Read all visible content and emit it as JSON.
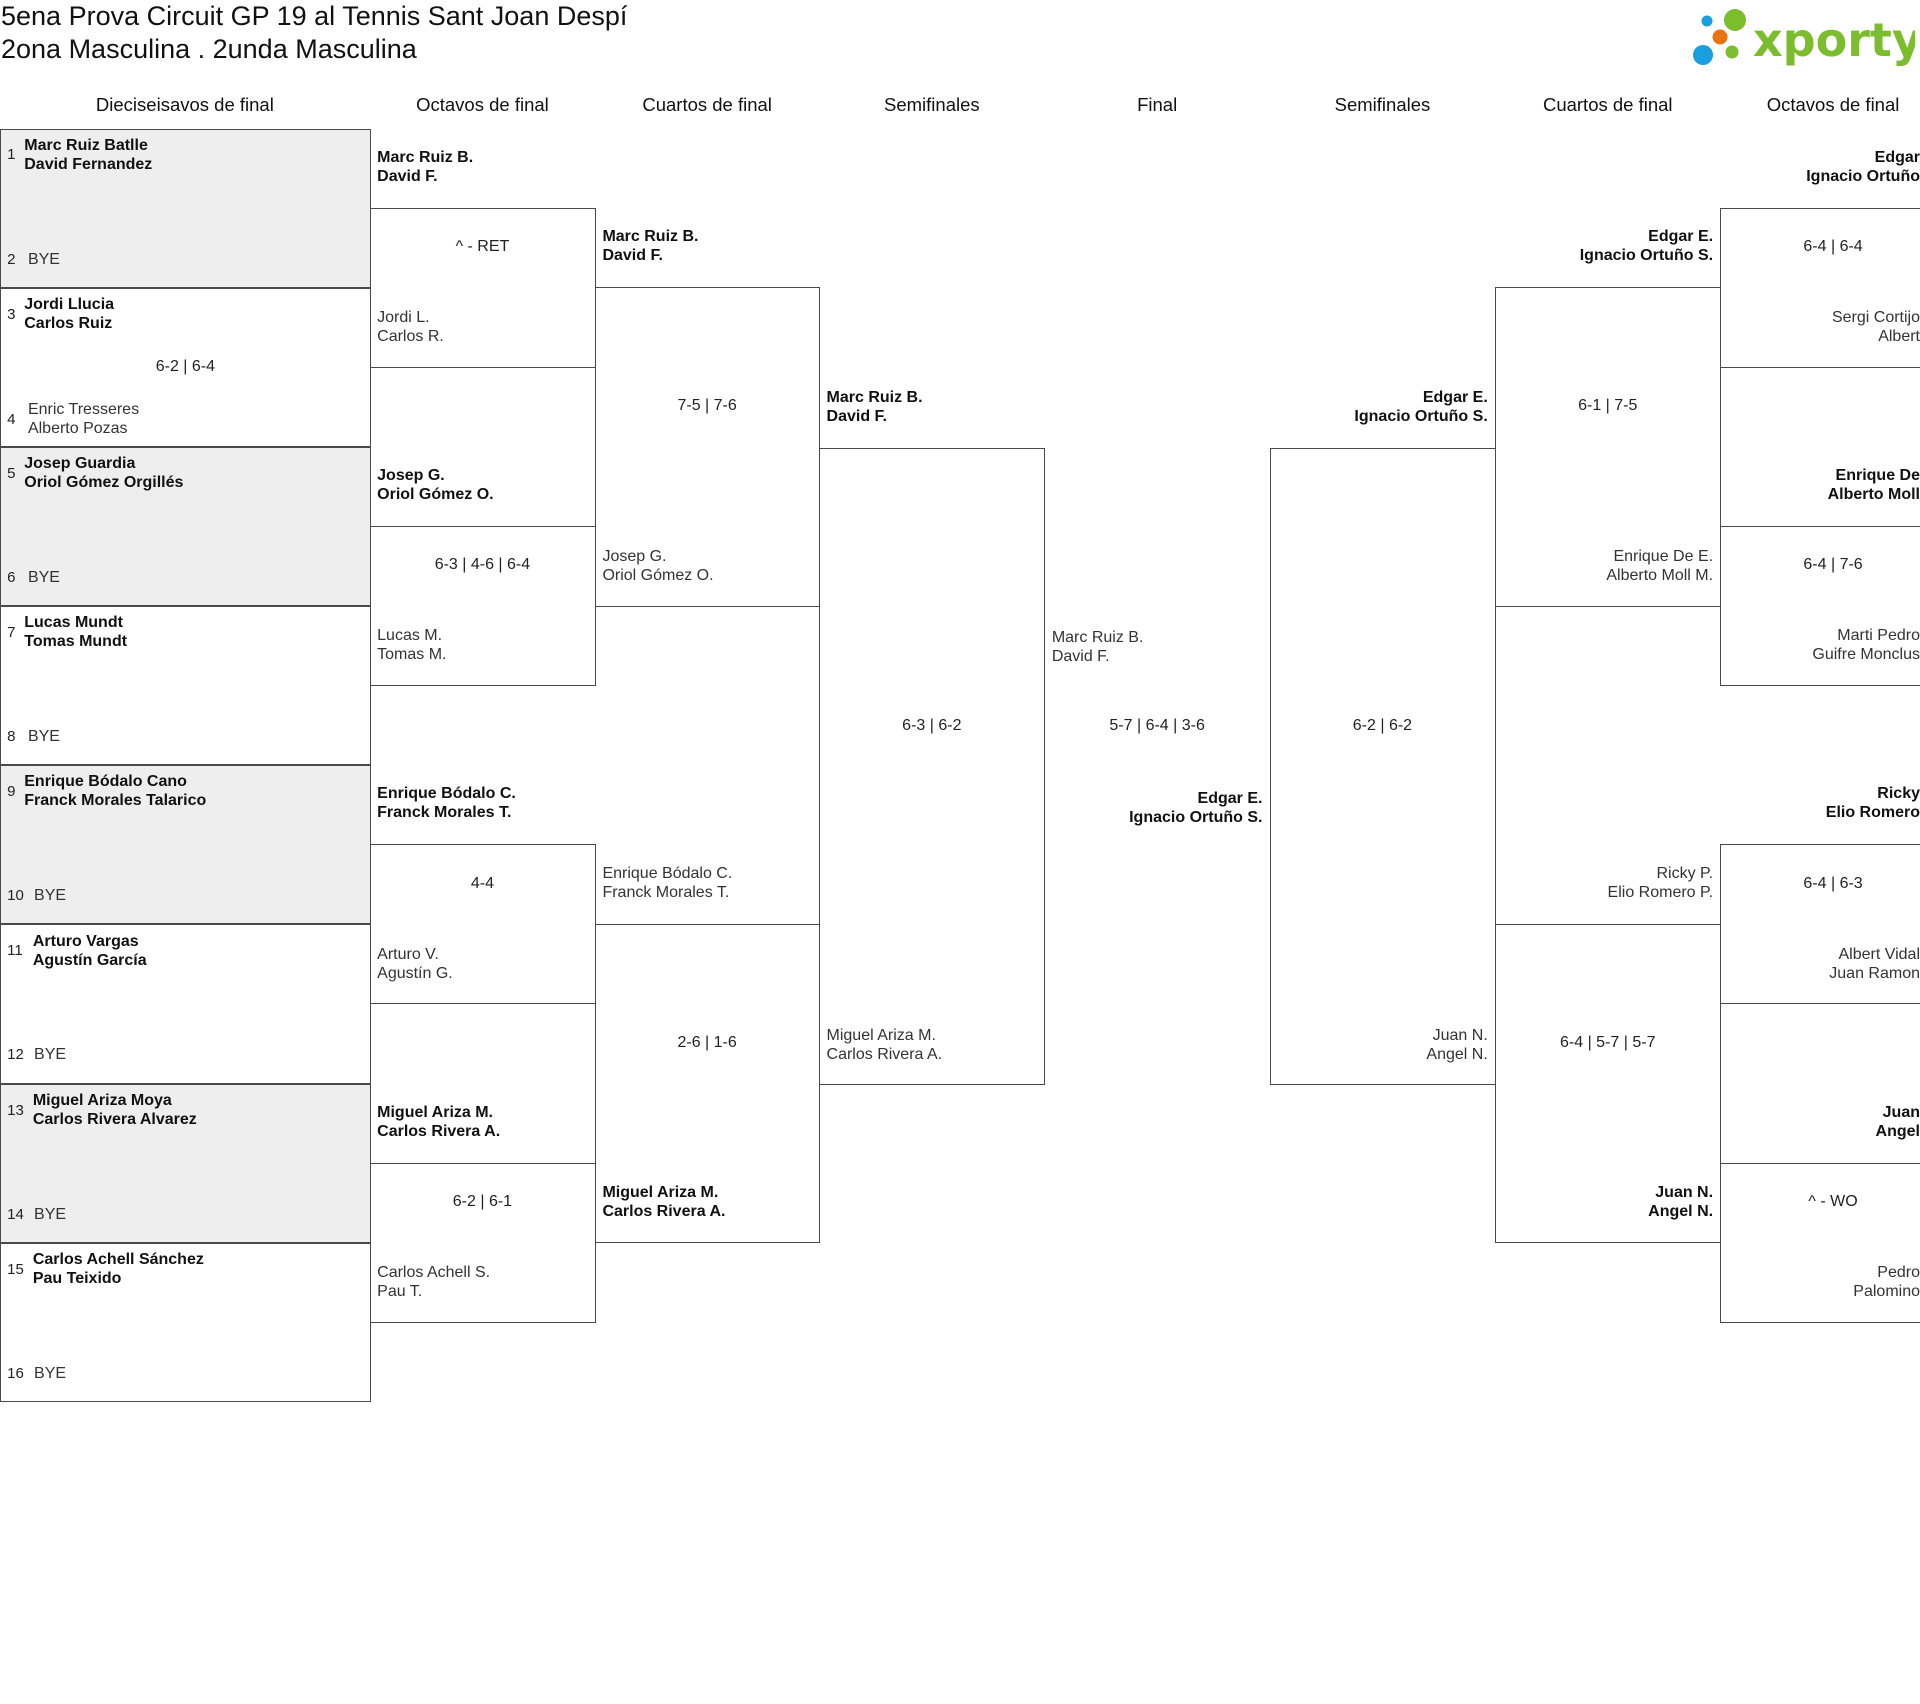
{
  "header": {
    "title_line1": "5ena Prova Circuit GP 19 al Tennis Sant Joan Despí",
    "title_line2": "2ona Masculina . 2unda Masculina"
  },
  "logo": {
    "text": "xporty",
    "colors": {
      "green": "#7cbd2e",
      "blue": "#1a9ee0",
      "orange": "#e8730f"
    }
  },
  "rounds": [
    "Dieciseisavos de final",
    "Octavos de final",
    "Cuartos de final",
    "Semifinales",
    "Final",
    "Semifinales",
    "Cuartos de final",
    "Octavos de final"
  ],
  "first_round": [
    {
      "top": {
        "seed": "1",
        "names": [
          "Marc Ruiz Batlle",
          "David Fernandez"
        ]
      },
      "bottom": {
        "seed": "2",
        "names": [
          "BYE"
        ]
      },
      "score": ""
    },
    {
      "top": {
        "seed": "3",
        "names": [
          "Jordi Llucia",
          "Carlos Ruiz"
        ]
      },
      "bottom": {
        "seed": "4",
        "names": [
          "Enric Tresseres",
          "Alberto Pozas"
        ]
      },
      "score": "6-2 | 6-4"
    },
    {
      "top": {
        "seed": "5",
        "names": [
          "Josep Guardia",
          "Oriol Gómez Orgillés"
        ]
      },
      "bottom": {
        "seed": "6",
        "names": [
          "BYE"
        ]
      },
      "score": ""
    },
    {
      "top": {
        "seed": "7",
        "names": [
          "Lucas Mundt",
          "Tomas Mundt"
        ]
      },
      "bottom": {
        "seed": "8",
        "names": [
          "BYE"
        ]
      },
      "score": ""
    },
    {
      "top": {
        "seed": "9",
        "names": [
          "Enrique Bódalo Cano",
          "Franck Morales Talarico"
        ]
      },
      "bottom": {
        "seed": "10",
        "names": [
          "BYE"
        ]
      },
      "score": ""
    },
    {
      "top": {
        "seed": "11",
        "names": [
          "Arturo Vargas",
          "Agustín García"
        ]
      },
      "bottom": {
        "seed": "12",
        "names": [
          "BYE"
        ]
      },
      "score": ""
    },
    {
      "top": {
        "seed": "13",
        "names": [
          "Miguel Ariza Moya",
          "Carlos Rivera Alvarez"
        ]
      },
      "bottom": {
        "seed": "14",
        "names": [
          "BYE"
        ]
      },
      "score": ""
    },
    {
      "top": {
        "seed": "15",
        "names": [
          "Carlos Achell Sánchez",
          "Pau Teixido"
        ]
      },
      "bottom": {
        "seed": "16",
        "names": [
          "BYE"
        ]
      },
      "score": ""
    }
  ],
  "left": {
    "octavos": [
      {
        "top": [
          "Marc Ruiz B.",
          "David F."
        ],
        "bottom": [
          "Jordi L.",
          "Carlos R."
        ],
        "score": "^ - RET",
        "winner": "top"
      },
      {
        "top": [
          "Josep G.",
          "Oriol Gómez O."
        ],
        "bottom": [
          "Lucas M.",
          "Tomas M."
        ],
        "score": "6-3 | 4-6 | 6-4",
        "winner": "top"
      },
      {
        "top": [
          "Enrique Bódalo C.",
          "Franck Morales T."
        ],
        "bottom": [
          "Arturo V.",
          "Agustín G."
        ],
        "score": "4-4",
        "winner": "top"
      },
      {
        "top": [
          "Miguel Ariza M.",
          "Carlos Rivera A."
        ],
        "bottom": [
          "Carlos Achell S.",
          "Pau T."
        ],
        "score": "6-2 | 6-1",
        "winner": "top"
      }
    ],
    "cuartos": [
      {
        "top": [
          "Marc Ruiz B.",
          "David F."
        ],
        "bottom": [
          "Josep G.",
          "Oriol Gómez O."
        ],
        "score": "7-5 | 7-6",
        "winner": "top"
      },
      {
        "top": [
          "Enrique Bódalo C.",
          "Franck Morales T."
        ],
        "bottom": [
          "Miguel Ariza M.",
          "Carlos Rivera A."
        ],
        "score": "2-6 | 1-6",
        "winner": "bottom"
      }
    ],
    "semis": [
      {
        "top": [
          "Marc Ruiz B.",
          "David F."
        ],
        "bottom": [
          "Miguel Ariza M.",
          "Carlos Rivera A."
        ],
        "score": "6-3 | 6-2",
        "winner": "top"
      }
    ]
  },
  "final": {
    "top": [
      "Marc Ruiz B.",
      "David F."
    ],
    "bottom": [
      "Edgar E.",
      "Ignacio Ortuño S."
    ],
    "score": "5-7 | 6-4 | 3-6",
    "winner": "bottom"
  },
  "right": {
    "semis": [
      {
        "top": [
          "Edgar E.",
          "Ignacio Ortuño S."
        ],
        "bottom": [
          "Juan N.",
          "Angel N."
        ],
        "score": "6-2 | 6-2",
        "winner": "top"
      }
    ],
    "cuartos": [
      {
        "top": [
          "Edgar E.",
          "Ignacio Ortuño S."
        ],
        "bottom": [
          "Enrique De E.",
          "Alberto Moll M."
        ],
        "score": "6-1 | 7-5",
        "winner": "top"
      },
      {
        "top": [
          "Ricky P.",
          "Elio Romero P."
        ],
        "bottom": [
          "Juan N.",
          "Angel N."
        ],
        "score": "6-4 | 5-7 | 5-7",
        "winner": "bottom"
      }
    ],
    "octavos": [
      {
        "top": [
          "Edgar",
          "Ignacio Ortuño"
        ],
        "bottom": [
          "Sergi Cortijo",
          "Albert"
        ],
        "score": "6-4 | 6-4",
        "winner": "top"
      },
      {
        "top": [
          "Enrique De",
          "Alberto Moll"
        ],
        "bottom": [
          "Marti Pedro",
          "Guifre Monclus"
        ],
        "score": "6-4 | 7-6",
        "winner": "top"
      },
      {
        "top": [
          "Ricky",
          "Elio Romero"
        ],
        "bottom": [
          "Albert Vidal",
          "Juan Ramon"
        ],
        "score": "6-4 | 6-3",
        "winner": "top"
      },
      {
        "top": [
          "Juan",
          "Angel"
        ],
        "bottom": [
          "Pedro",
          "Palomino"
        ],
        "score": "^ - WO",
        "winner": "top"
      }
    ]
  }
}
